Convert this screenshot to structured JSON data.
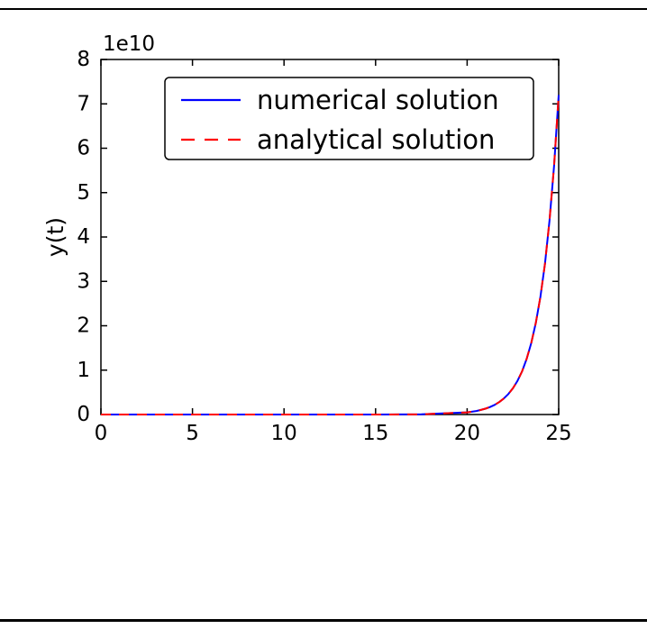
{
  "page": {
    "background": "#ffffff",
    "top_rule_color": "#000000",
    "bottom_rule_color": "#000000"
  },
  "chart_data": {
    "type": "line",
    "title": "",
    "xlabel": "",
    "ylabel": "y(t)",
    "y_offset_text": "1e10",
    "y_scale_factor": 10000000000,
    "xlim": [
      0,
      25
    ],
    "ylim": [
      0,
      8
    ],
    "xticks": [
      0,
      5,
      10,
      15,
      20,
      25
    ],
    "yticks": [
      0,
      1,
      2,
      3,
      4,
      5,
      6,
      7,
      8
    ],
    "grid": false,
    "legend_position": "upper left",
    "axis_color": "#000000",
    "x": [
      0,
      2.5,
      5,
      7.5,
      10,
      12.5,
      15,
      17.5,
      20,
      20.25,
      20.5,
      20.75,
      21,
      21.25,
      21.5,
      21.75,
      22,
      22.25,
      22.5,
      22.75,
      23,
      23.25,
      23.5,
      23.75,
      24,
      24.25,
      24.5,
      24.75,
      25
    ],
    "series": [
      {
        "name": "numerical solution",
        "color": "#0000ff",
        "linestyle": "solid",
        "values": [
          1e-10,
          1.2e-09,
          1.48e-08,
          1.808e-07,
          2.2026e-06,
          2.68337e-05,
          0.000326902,
          0.0039824,
          0.0485165,
          0.0622971,
          0.0799902,
          0.1027094,
          0.1318816,
          0.169344,
          0.2174359,
          0.2791931,
          0.3584913,
          0.4603093,
          0.5910522,
          0.7589178,
          0.9744803,
          1.251277,
          1.6066465,
          2.0629752,
          2.6489122,
          3.4012787,
          4.3673179,
          5.6077457,
          7.2004899
        ]
      },
      {
        "name": "analytical solution",
        "color": "#ff0000",
        "linestyle": "dashed",
        "values": [
          1e-10,
          1.2e-09,
          1.48e-08,
          1.808e-07,
          2.2026e-06,
          2.68337e-05,
          0.000326902,
          0.0039824,
          0.0485165,
          0.0622971,
          0.0799902,
          0.1027094,
          0.1318816,
          0.169344,
          0.2174359,
          0.2791931,
          0.3584913,
          0.4603093,
          0.5910522,
          0.7589178,
          0.9744803,
          1.251277,
          1.6066465,
          2.0629752,
          2.6489122,
          3.4012787,
          4.3673179,
          5.6077457,
          7.2004899
        ]
      }
    ]
  }
}
